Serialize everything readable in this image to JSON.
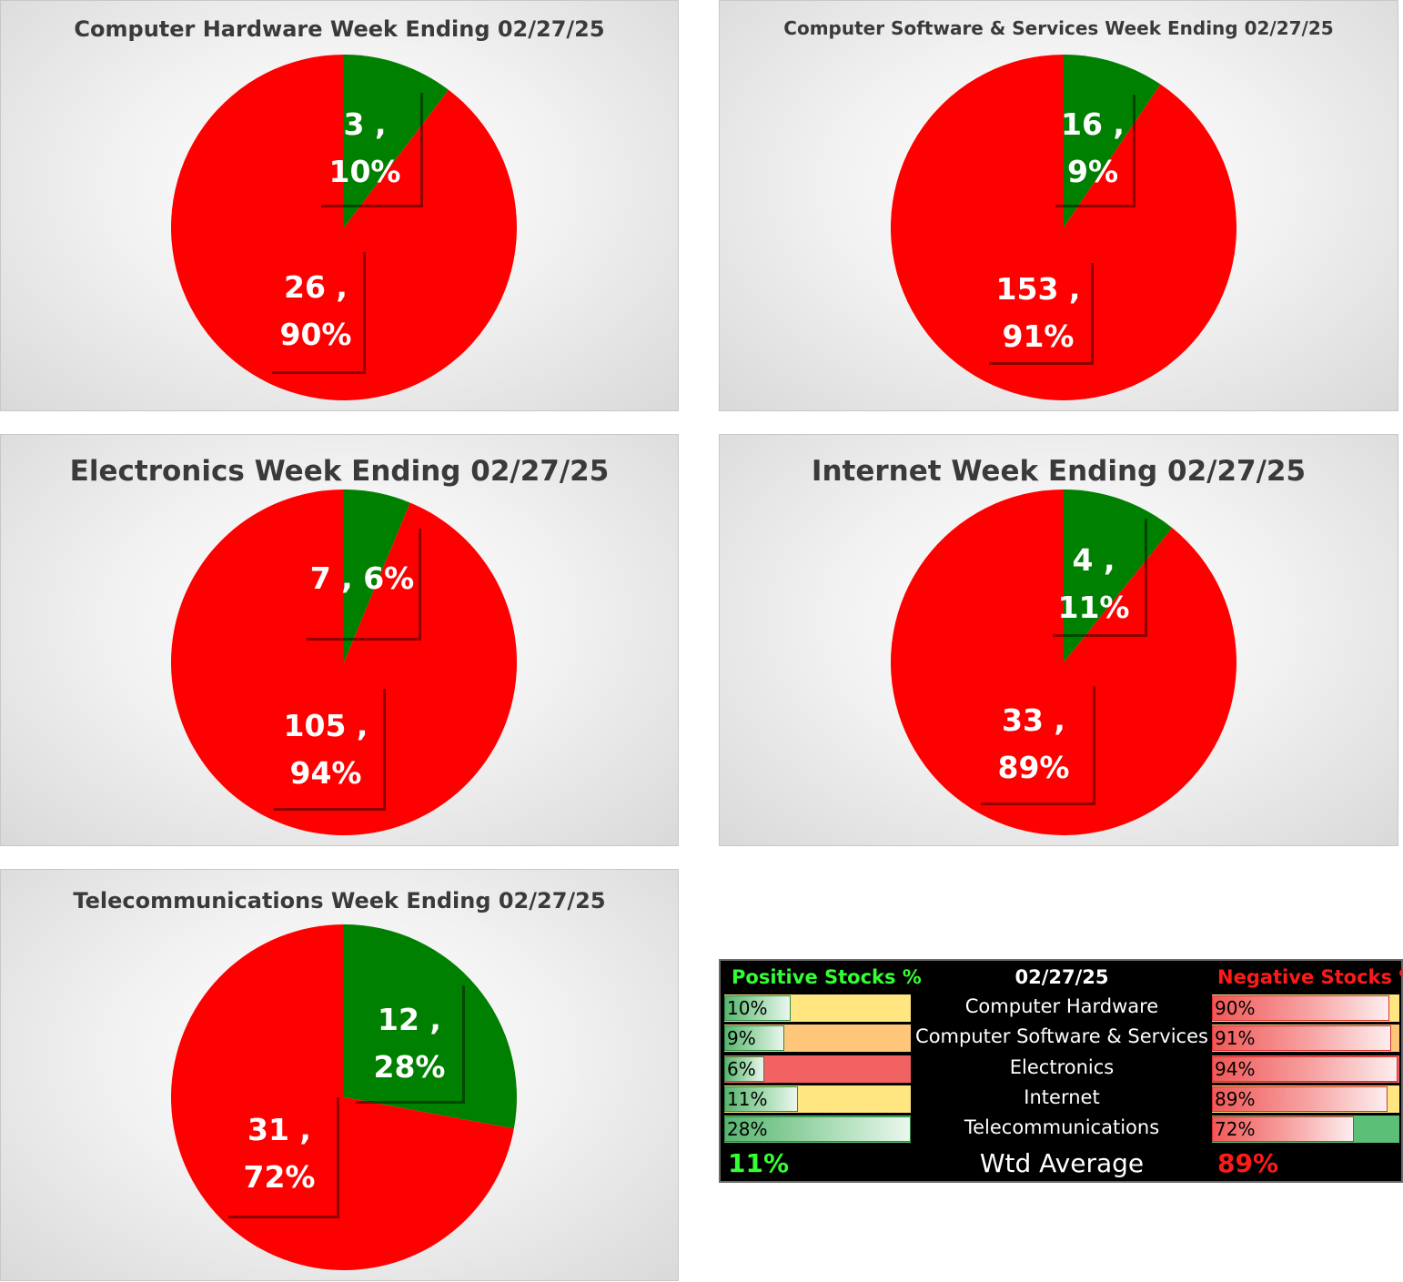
{
  "colors": {
    "positive": "#008000",
    "negative": "#ff0000"
  },
  "chart_data": [
    {
      "type": "pie",
      "title": "Computer Hardware Week Ending 02/27/25",
      "slices": [
        {
          "value": 3,
          "percent": "10%",
          "color": "#008000"
        },
        {
          "value": 26,
          "percent": "90%",
          "color": "#ff0000"
        }
      ],
      "labels": {
        "pos_line1": "3 ,",
        "pos_line2": "10%",
        "neg_line1": "26 ,",
        "neg_line2": "90%"
      }
    },
    {
      "type": "pie",
      "title": "Computer Software & Services Week Ending 02/27/25",
      "slices": [
        {
          "value": 16,
          "percent": "9%",
          "color": "#008000"
        },
        {
          "value": 153,
          "percent": "91%",
          "color": "#ff0000"
        }
      ],
      "labels": {
        "pos_line1": "16 ,",
        "pos_line2": "9%",
        "neg_line1": "153 ,",
        "neg_line2": "91%"
      }
    },
    {
      "type": "pie",
      "title": "Electronics Week Ending 02/27/25",
      "slices": [
        {
          "value": 7,
          "percent": "6%",
          "color": "#008000"
        },
        {
          "value": 105,
          "percent": "94%",
          "color": "#ff0000"
        }
      ],
      "labels": {
        "pos_line1": "7 , 6%",
        "pos_line2": "",
        "neg_line1": "105 ,",
        "neg_line2": "94%"
      }
    },
    {
      "type": "pie",
      "title": "Internet Week Ending 02/27/25",
      "slices": [
        {
          "value": 4,
          "percent": "11%",
          "color": "#008000"
        },
        {
          "value": 33,
          "percent": "89%",
          "color": "#ff0000"
        }
      ],
      "labels": {
        "pos_line1": "4 ,",
        "pos_line2": "11%",
        "neg_line1": "33 ,",
        "neg_line2": "89%"
      }
    },
    {
      "type": "pie",
      "title": "Telecommunications Week Ending 02/27/25",
      "slices": [
        {
          "value": 12,
          "percent": "28%",
          "color": "#008000"
        },
        {
          "value": 31,
          "percent": "72%",
          "color": "#ff0000"
        }
      ],
      "labels": {
        "pos_line1": "12 ,",
        "pos_line2": "28%",
        "neg_line1": "31 ,",
        "neg_line2": "72%"
      }
    },
    {
      "type": "table",
      "header": {
        "positive": "Positive Stocks %",
        "date": "02/27/25",
        "negative": "Negative Stocks %"
      },
      "rows": [
        {
          "category": "Computer Hardware",
          "positive": "10%",
          "positive_value": 0.1,
          "negative": "90%",
          "negative_value": 0.9,
          "pos_bg": "#ffe680",
          "neg_bg": "#ffe680"
        },
        {
          "category": "Computer Software & Services",
          "positive": "9%",
          "positive_value": 0.09,
          "negative": "91%",
          "negative_value": 0.91,
          "pos_bg": "#ffc67a",
          "neg_bg": "#ffc67a"
        },
        {
          "category": "Electronics",
          "positive": "6%",
          "positive_value": 0.06,
          "negative": "94%",
          "negative_value": 0.94,
          "pos_bg": "#f36262",
          "neg_bg": "#f36262"
        },
        {
          "category": "Internet",
          "positive": "11%",
          "positive_value": 0.11,
          "negative": "89%",
          "negative_value": 0.89,
          "pos_bg": "#ffe680",
          "neg_bg": "#ffe680"
        },
        {
          "category": "Telecommunications",
          "positive": "28%",
          "positive_value": 0.28,
          "negative": "72%",
          "negative_value": 0.72,
          "pos_bg": "#5cbf78",
          "neg_bg": "#5cbf78"
        }
      ],
      "footer": {
        "positive": "11%",
        "label": "Wtd Average",
        "negative": "89%"
      }
    }
  ]
}
